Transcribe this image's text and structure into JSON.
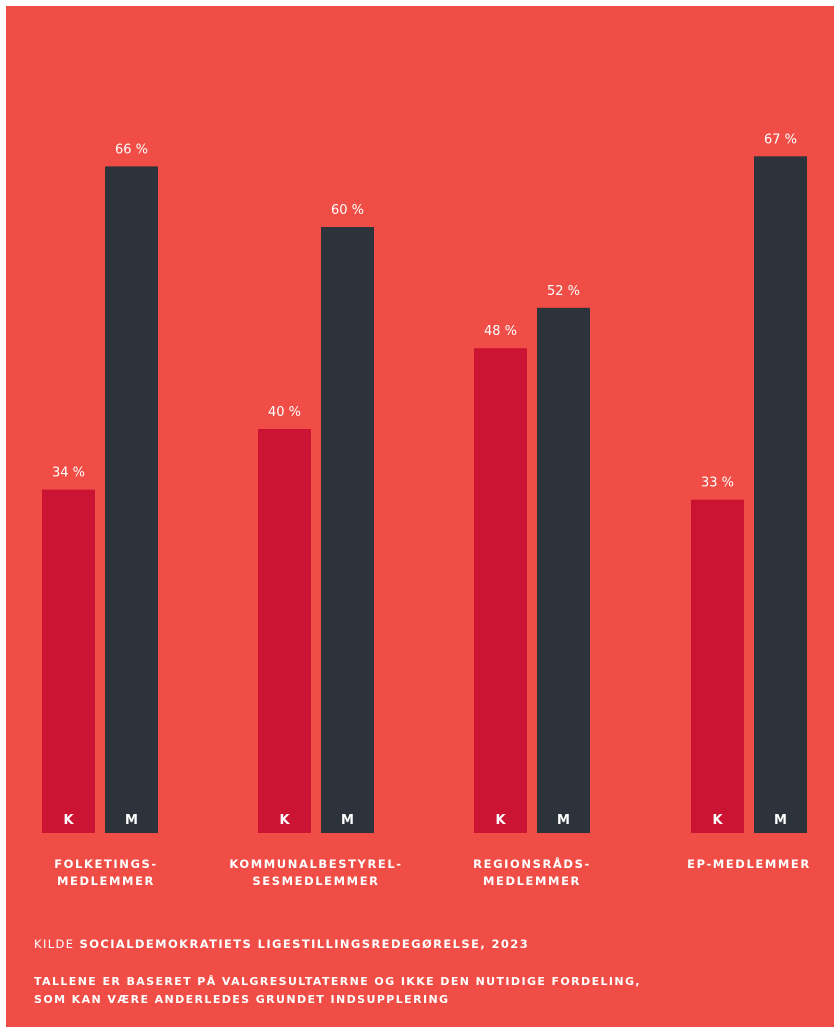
{
  "colors": {
    "background": "#ef4d45",
    "k_bar": "#cb1433",
    "m_bar": "#2d333b",
    "text": "#ffffff"
  },
  "chart_data": {
    "type": "bar",
    "categories": [
      [
        "FOLKETINGS-",
        "MEDLEMMER"
      ],
      [
        "KOMMUNALBESTYREL-",
        "SESMEDLEMMER"
      ],
      [
        "REGIONSRÅDS-",
        "MEDLEMMER"
      ],
      [
        "EP-MEDLEMMER"
      ]
    ],
    "series": [
      {
        "name": "K",
        "values": [
          34,
          40,
          48,
          33
        ],
        "labels": [
          "34 %",
          "40 %",
          "48 %",
          "33 %"
        ],
        "color": "#cb1433"
      },
      {
        "name": "M",
        "values": [
          66,
          60,
          52,
          67
        ],
        "labels": [
          "66 %",
          "60 %",
          "52 %",
          "67 %"
        ],
        "color": "#2d333b"
      }
    ],
    "ylim": [
      0,
      100
    ],
    "unit": "%",
    "grid": false,
    "axes_visible": false
  },
  "footer": {
    "source_prefix": "KILDE ",
    "source_name": "SOCIALDEMOKRATIETS LIGESTILLINGSREDEGØRELSE, 2023",
    "note_lines": [
      "TALLENE ER BASERET PÅ VALGRESULTATERNE OG IKKE DEN NUTIDIGE FORDELING,",
      "SOM KAN VÆRE ANDERLEDES GRUNDET INDSUPPLERING"
    ]
  }
}
